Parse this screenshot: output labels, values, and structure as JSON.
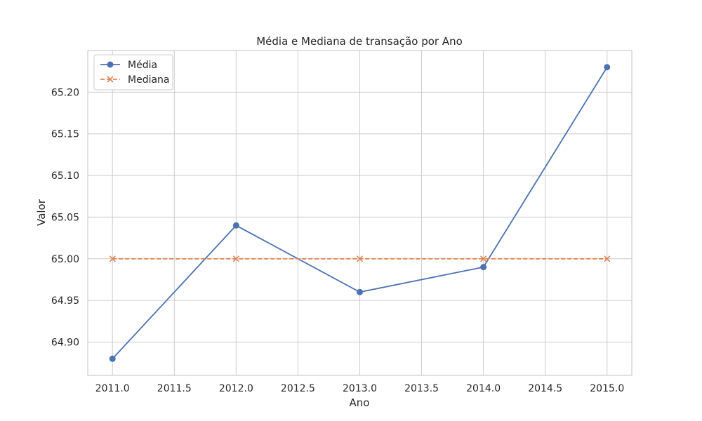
{
  "chart_data": {
    "type": "line",
    "title": "Média e Mediana de transação por Ano",
    "xlabel": "Ano",
    "ylabel": "Valor",
    "x": [
      2011.0,
      2012.0,
      2013.0,
      2014.0,
      2015.0
    ],
    "xticks": [
      "2011.0",
      "2011.5",
      "2012.0",
      "2012.5",
      "2013.0",
      "2013.5",
      "2014.0",
      "2014.5",
      "2015.0"
    ],
    "yticks": [
      "64.90",
      "64.95",
      "65.00",
      "65.05",
      "65.10",
      "65.15",
      "65.20"
    ],
    "xlim": [
      2010.8,
      2015.2
    ],
    "ylim": [
      64.86,
      65.25
    ],
    "grid": true,
    "legend_position": "top-left",
    "series": [
      {
        "name": "Média",
        "values": [
          64.88,
          65.04,
          64.96,
          64.99,
          65.23
        ],
        "color": "#4c72b0",
        "marker": "circle",
        "linestyle": "solid"
      },
      {
        "name": "Mediana",
        "values": [
          65.0,
          65.0,
          65.0,
          65.0,
          65.0
        ],
        "color": "#dd8452",
        "marker": "x",
        "linestyle": "dashed"
      }
    ]
  }
}
